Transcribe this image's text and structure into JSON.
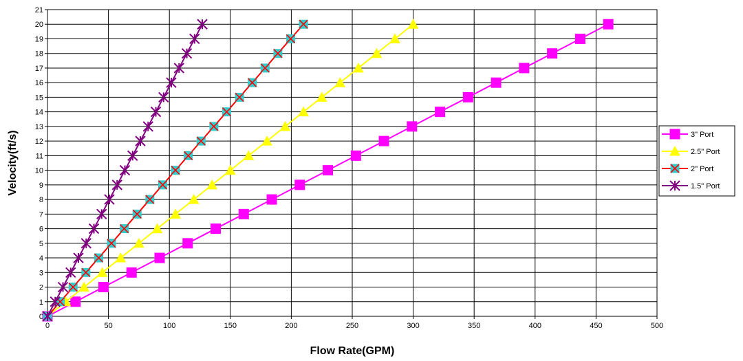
{
  "chart_data": {
    "type": "line",
    "title": "",
    "xlabel": "Flow Rate(GPM)",
    "ylabel": "Velocity(ft/s)",
    "xlim": [
      0,
      500
    ],
    "ylim": [
      0,
      21
    ],
    "x_ticks": [
      "0",
      "50",
      "100",
      "150",
      "200",
      "250",
      "300",
      "350",
      "400",
      "450",
      "500"
    ],
    "y_ticks": [
      "0",
      "1",
      "2",
      "3",
      "4",
      "5",
      "6",
      "7",
      "8",
      "9",
      "10",
      "11",
      "12",
      "13",
      "14",
      "15",
      "16",
      "17",
      "18",
      "19",
      "20",
      "21"
    ],
    "grid": true,
    "legend_position": "right",
    "y": [
      0,
      1,
      2,
      3,
      4,
      5,
      6,
      7,
      8,
      9,
      10,
      11,
      12,
      13,
      14,
      15,
      16,
      17,
      18,
      19,
      20
    ],
    "series": [
      {
        "name": "3\" Port",
        "color": "#ff00ff",
        "marker": "square",
        "x": [
          0,
          23,
          46,
          69,
          92,
          115,
          138,
          161,
          184,
          207,
          230,
          253,
          276,
          299,
          322,
          345,
          368,
          391,
          414,
          437,
          460
        ]
      },
      {
        "name": "2.5\" Port",
        "color": "#ffff00",
        "marker": "triangle",
        "x": [
          0,
          15,
          30,
          45,
          60,
          75,
          90,
          105,
          120,
          135,
          150,
          165,
          180,
          195,
          210,
          225,
          240,
          255,
          270,
          285,
          300
        ]
      },
      {
        "name": "2\" Port",
        "color": "#ff0000",
        "marker": "cyan-square-x",
        "x": [
          0,
          10.5,
          21,
          31.5,
          42,
          52.5,
          63,
          73.5,
          84,
          94.5,
          105,
          115.5,
          126,
          136.5,
          147,
          157.5,
          168,
          178.5,
          189,
          199.5,
          210
        ]
      },
      {
        "name": "1.5\" Port",
        "color": "#800080",
        "marker": "star",
        "x": [
          0,
          6.35,
          12.7,
          19.05,
          25.4,
          31.75,
          38.1,
          44.45,
          50.8,
          57.15,
          63.5,
          69.85,
          76.2,
          82.55,
          88.9,
          95.25,
          101.6,
          107.95,
          114.3,
          120.65,
          127
        ]
      }
    ]
  }
}
